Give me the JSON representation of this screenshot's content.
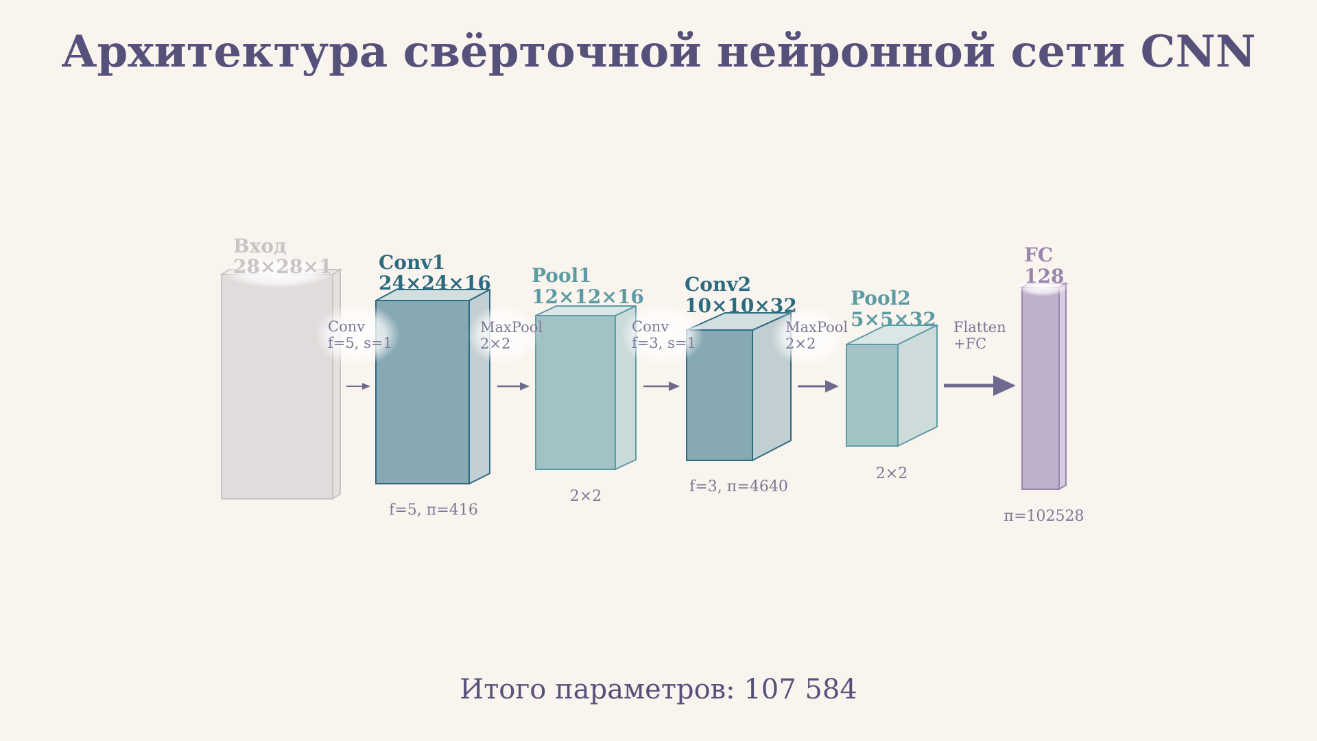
{
  "title": "Архитектура свёрточной нейронной сети CNN",
  "total": "Итого параметров: 107 584",
  "colors": {
    "background": "#faf4ee",
    "title": "#56517a",
    "input": "#c9c4c4",
    "conv_front": "#87a9b4",
    "conv_edge": "#2c6a80",
    "pool_front": "#a3c2c6",
    "pool_edge": "#5c9ba3",
    "fc_front": "#bfb0c9",
    "fc_edge": "#9a86ad",
    "arrow": "#6e6a8e",
    "muted_text": "#7b7795"
  },
  "layers": [
    {
      "id": "input",
      "name": "Вход",
      "dims": "28×28×1",
      "below": ""
    },
    {
      "id": "conv1",
      "name": "Conv1",
      "dims": "24×24×16",
      "below": "f=5, п=416"
    },
    {
      "id": "pool1",
      "name": "Pool1",
      "dims": "12×12×16",
      "below": "2×2"
    },
    {
      "id": "conv2",
      "name": "Conv2",
      "dims": "10×10×32",
      "below": "f=3, п=4640"
    },
    {
      "id": "pool2",
      "name": "Pool2",
      "dims": "5×5×32",
      "below": "2×2"
    },
    {
      "id": "fc",
      "name": "FC",
      "dims": "128",
      "below": "п=102528"
    }
  ],
  "ops": [
    {
      "line1": "Conv",
      "line2": "f=5, s=1"
    },
    {
      "line1": "MaxPool",
      "line2": "2×2"
    },
    {
      "line1": "Conv",
      "line2": "f=3, s=1"
    },
    {
      "line1": "MaxPool",
      "line2": "2×2"
    },
    {
      "line1": "Flatten",
      "line2": "+FC"
    }
  ]
}
